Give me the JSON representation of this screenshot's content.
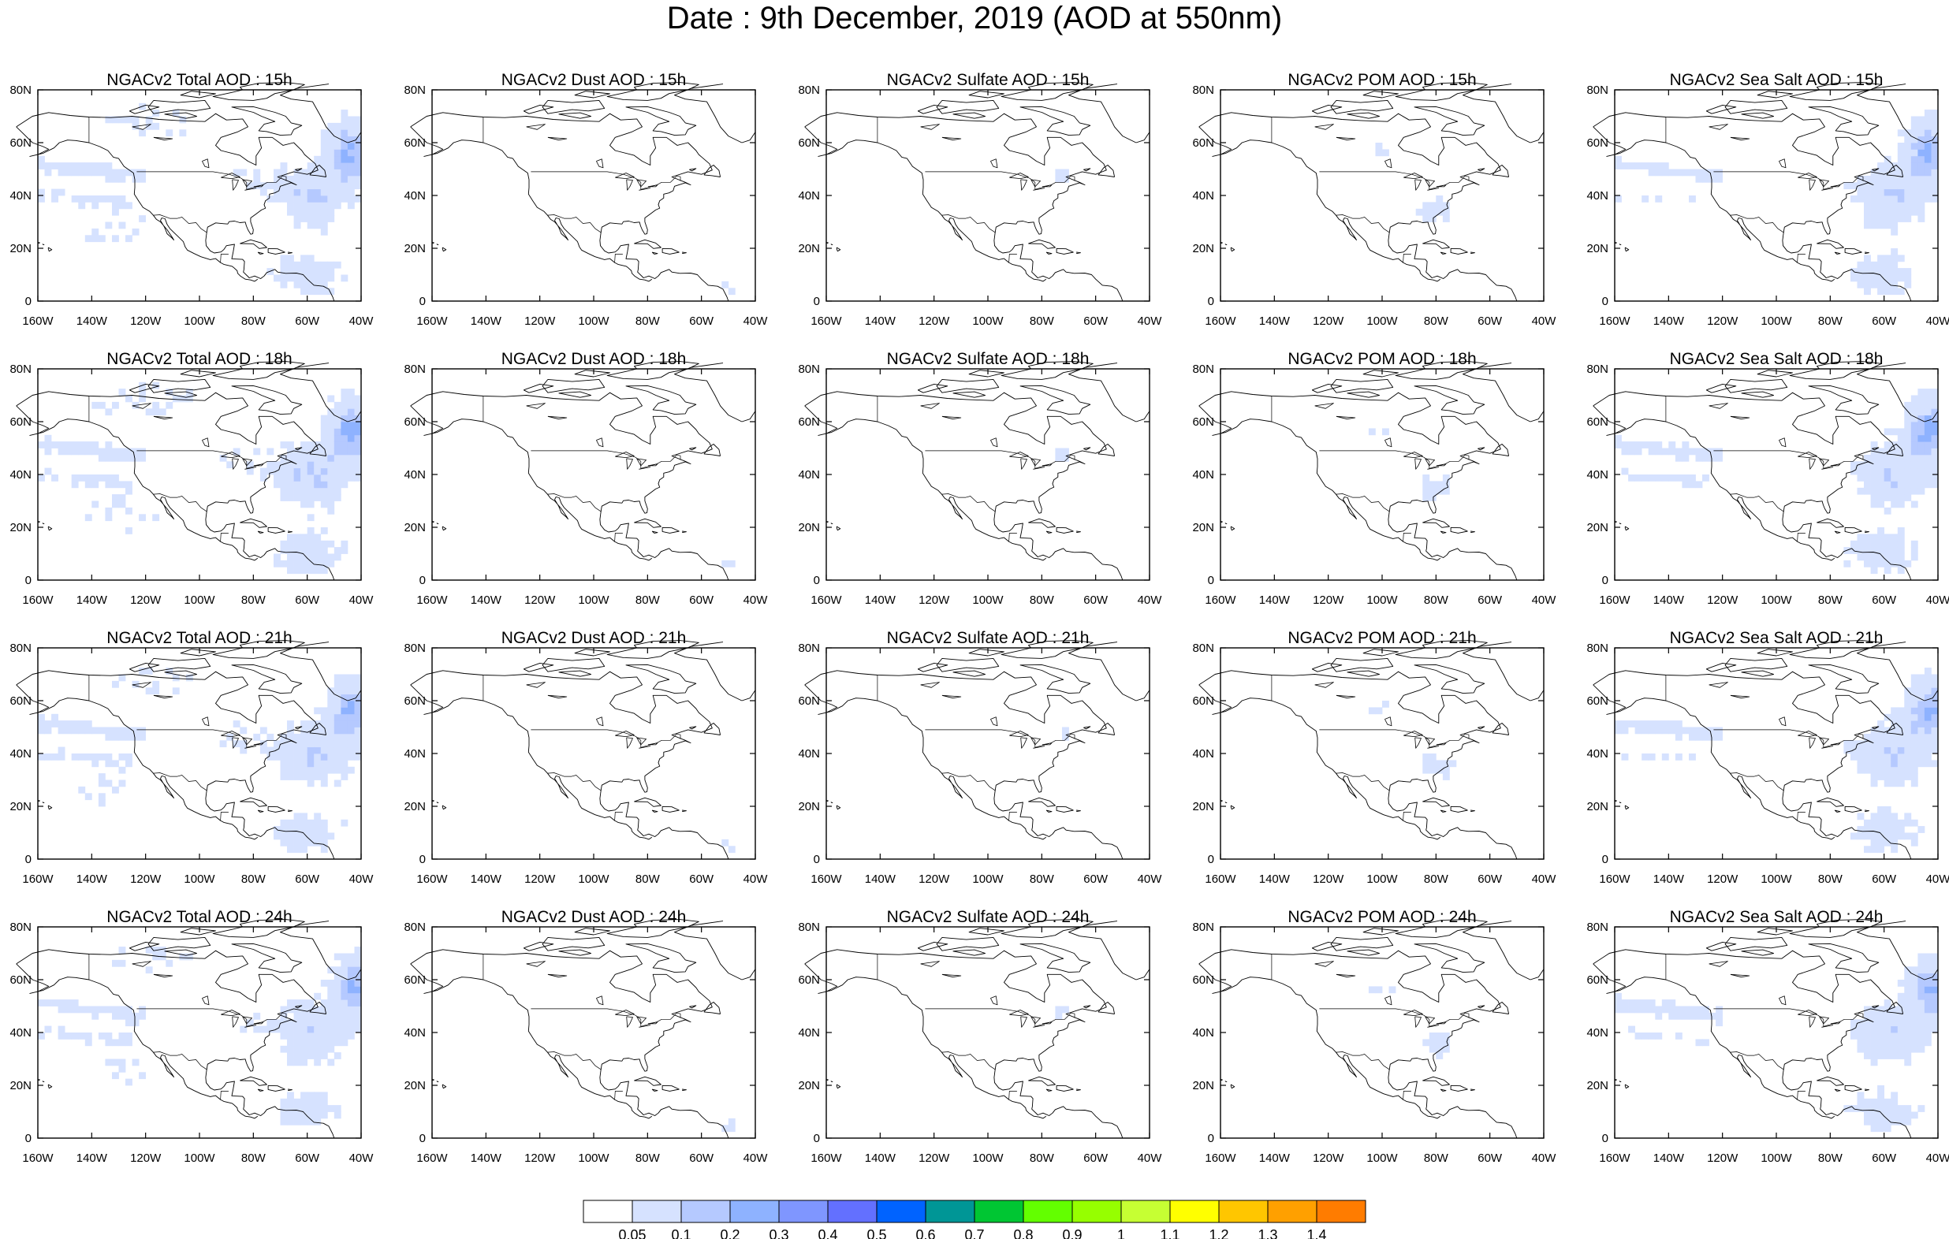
{
  "title": "Date : 9th December, 2019 (AOD at 550nm)",
  "row_hours": [
    "15h",
    "18h",
    "21h",
    "24h"
  ],
  "panels": [
    [
      "NGACv2 Total AOD : 15h",
      "NGACv2 Dust AOD : 15h",
      "NGACv2 Sulfate AOD : 15h",
      "NGACv2 POM AOD : 15h",
      "NGACv2 Sea Salt AOD : 15h"
    ],
    [
      "NGACv2 Total AOD : 18h",
      "NGACv2 Dust AOD : 18h",
      "NGACv2 Sulfate AOD : 18h",
      "NGACv2 POM AOD : 18h",
      "NGACv2 Sea Salt AOD : 18h"
    ],
    [
      "NGACv2 Total AOD : 21h",
      "NGACv2 Dust AOD : 21h",
      "NGACv2 Sulfate AOD : 21h",
      "NGACv2 POM AOD : 21h",
      "NGACv2 Sea Salt AOD : 21h"
    ],
    [
      "NGACv2 Total AOD : 24h",
      "NGACv2 Dust AOD : 24h",
      "NGACv2 Sulfate AOD : 24h",
      "NGACv2 POM AOD : 24h",
      "NGACv2 Sea Salt  AOD : 24h"
    ]
  ],
  "aerosol_types": [
    "total",
    "dust",
    "sulfate",
    "pom",
    "seasalt"
  ],
  "x_ticks": [
    "160W",
    "140W",
    "120W",
    "100W",
    "80W",
    "60W",
    "40W"
  ],
  "y_ticks": [
    "0",
    "20N",
    "40N",
    "60N",
    "80N"
  ],
  "colorbar": {
    "labels": [
      "0.05",
      "0.1",
      "0.2",
      "0.3",
      "0.4",
      "0.5",
      "0.6",
      "0.7",
      "0.8",
      "0.9",
      "1",
      "1.1",
      "1.2",
      "1.3",
      "1.4"
    ],
    "colors": [
      "#ffffff",
      "#d6e2ff",
      "#b5c9ff",
      "#8eb2ff",
      "#7f96ff",
      "#6370ff",
      "#0063ff",
      "#009696",
      "#00c633",
      "#63ff00",
      "#96ff00",
      "#c6ff33",
      "#ffff00",
      "#ffc600",
      "#ffa000",
      "#ff7c00",
      "#ff1900"
    ]
  }
}
